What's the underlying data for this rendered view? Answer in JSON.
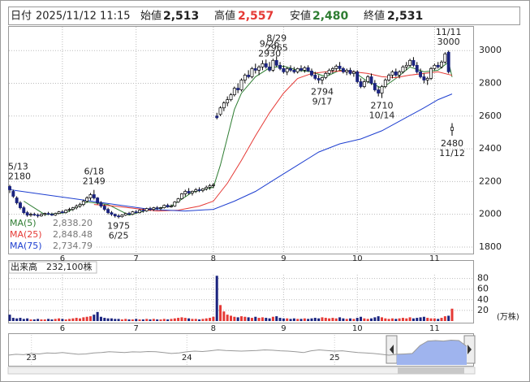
{
  "header": {
    "date_label": "日付",
    "date": "2025/11/12 11:15",
    "open_label": "始値",
    "open": "2,513",
    "high_label": "高値",
    "high": "2,557",
    "low_label": "安値",
    "low": "2,480",
    "close_label": "終値",
    "close": "2,531"
  },
  "chart_data": [
    {
      "type": "candlestick",
      "ylim": [
        1760,
        3150
      ],
      "yticks": [
        1800,
        2000,
        2200,
        2400,
        2600,
        2800,
        3000
      ],
      "xlim": [
        0,
        126
      ],
      "xticks": [
        {
          "value": 15,
          "label": "6"
        },
        {
          "value": 36,
          "label": "7"
        },
        {
          "value": 58,
          "label": "8"
        },
        {
          "value": 78,
          "label": "9"
        },
        {
          "value": 99,
          "label": "10"
        },
        {
          "value": 121,
          "label": "11"
        }
      ],
      "grid": true,
      "up_color": "#ffffff",
      "down_color": "#1a237e",
      "ohlc": [
        [
          2170,
          2180,
          2130,
          2150
        ],
        [
          2140,
          2150,
          2100,
          2110
        ],
        [
          2100,
          2110,
          2060,
          2070
        ],
        [
          2070,
          2080,
          2030,
          2040
        ],
        [
          2040,
          2050,
          2000,
          2010
        ],
        [
          2010,
          2020,
          1985,
          1995
        ],
        [
          1995,
          2010,
          1985,
          2000
        ],
        [
          2000,
          2010,
          1990,
          1995
        ],
        [
          1995,
          2005,
          1980,
          1990
        ],
        [
          1990,
          2005,
          1985,
          2000
        ],
        [
          2000,
          2010,
          1990,
          2005
        ],
        [
          2005,
          2015,
          1995,
          2000
        ],
        [
          2000,
          2010,
          1990,
          1995
        ],
        [
          1995,
          2010,
          1990,
          2005
        ],
        [
          2005,
          2020,
          2000,
          2015
        ],
        [
          2015,
          2025,
          2005,
          2010
        ],
        [
          2010,
          2030,
          2005,
          2025
        ],
        [
          2025,
          2040,
          2015,
          2030
        ],
        [
          2030,
          2045,
          2020,
          2040
        ],
        [
          2040,
          2060,
          2030,
          2050
        ],
        [
          2050,
          2070,
          2040,
          2060
        ],
        [
          2060,
          2090,
          2050,
          2080
        ],
        [
          2080,
          2110,
          2070,
          2100
        ],
        [
          2100,
          2130,
          2085,
          2120
        ],
        [
          2120,
          2149,
          2090,
          2100
        ],
        [
          2100,
          2105,
          2060,
          2070
        ],
        [
          2070,
          2080,
          2040,
          2050
        ],
        [
          2050,
          2060,
          2020,
          2030
        ],
        [
          2030,
          2040,
          2000,
          2010
        ],
        [
          2010,
          2020,
          1990,
          2000
        ],
        [
          2000,
          2005,
          1980,
          1990
        ],
        [
          1990,
          2000,
          1975,
          1985
        ],
        [
          1985,
          2000,
          1980,
          1995
        ],
        [
          1995,
          2010,
          1990,
          2005
        ],
        [
          2005,
          2015,
          1995,
          2000
        ],
        [
          2000,
          2020,
          1995,
          2015
        ],
        [
          2015,
          2025,
          2005,
          2010
        ],
        [
          2010,
          2030,
          2005,
          2025
        ],
        [
          2025,
          2035,
          2010,
          2020
        ],
        [
          2020,
          2040,
          2015,
          2035
        ],
        [
          2035,
          2045,
          2020,
          2030
        ],
        [
          2030,
          2045,
          2020,
          2040
        ],
        [
          2040,
          2050,
          2025,
          2035
        ],
        [
          2035,
          2045,
          2025,
          2040
        ],
        [
          2040,
          2060,
          2035,
          2055
        ],
        [
          2055,
          2065,
          2040,
          2045
        ],
        [
          2045,
          2060,
          2040,
          2050
        ],
        [
          2050,
          2080,
          2045,
          2075
        ],
        [
          2075,
          2100,
          2070,
          2095
        ],
        [
          2095,
          2130,
          2090,
          2125
        ],
        [
          2125,
          2150,
          2110,
          2140
        ],
        [
          2140,
          2160,
          2120,
          2130
        ],
        [
          2130,
          2145,
          2115,
          2140
        ],
        [
          2140,
          2160,
          2130,
          2150
        ],
        [
          2150,
          2165,
          2135,
          2145
        ],
        [
          2145,
          2160,
          2135,
          2155
        ],
        [
          2155,
          2175,
          2145,
          2165
        ],
        [
          2165,
          2185,
          2150,
          2175
        ],
        [
          2175,
          2190,
          2160,
          2180
        ],
        [
          2600,
          2620,
          2580,
          2590
        ],
        [
          2610,
          2660,
          2600,
          2650
        ],
        [
          2650,
          2690,
          2630,
          2680
        ],
        [
          2680,
          2720,
          2660,
          2700
        ],
        [
          2700,
          2740,
          2690,
          2730
        ],
        [
          2730,
          2780,
          2720,
          2770
        ],
        [
          2770,
          2800,
          2740,
          2760
        ],
        [
          2760,
          2830,
          2750,
          2820
        ],
        [
          2820,
          2860,
          2800,
          2850
        ],
        [
          2850,
          2880,
          2830,
          2840
        ],
        [
          2840,
          2900,
          2830,
          2890
        ],
        [
          2890,
          2920,
          2860,
          2880
        ],
        [
          2880,
          2910,
          2850,
          2900
        ],
        [
          2900,
          2940,
          2880,
          2920
        ],
        [
          2920,
          2945,
          2890,
          2900
        ],
        [
          2900,
          2930,
          2870,
          2880
        ],
        [
          2880,
          2950,
          2870,
          2940
        ],
        [
          2940,
          2965,
          2900,
          2910
        ],
        [
          2910,
          2930,
          2880,
          2890
        ],
        [
          2890,
          2910,
          2860,
          2870
        ],
        [
          2870,
          2900,
          2850,
          2890
        ],
        [
          2890,
          2910,
          2870,
          2880
        ],
        [
          2880,
          2900,
          2860,
          2870
        ],
        [
          2870,
          2895,
          2860,
          2890
        ],
        [
          2890,
          2910,
          2870,
          2880
        ],
        [
          2880,
          2905,
          2865,
          2895
        ],
        [
          2895,
          2910,
          2870,
          2875
        ],
        [
          2875,
          2890,
          2840,
          2850
        ],
        [
          2850,
          2870,
          2820,
          2830
        ],
        [
          2830,
          2850,
          2800,
          2820
        ],
        [
          2820,
          2840,
          2794,
          2835
        ],
        [
          2835,
          2870,
          2825,
          2860
        ],
        [
          2860,
          2890,
          2850,
          2880
        ],
        [
          2880,
          2900,
          2860,
          2890
        ],
        [
          2890,
          2915,
          2875,
          2905
        ],
        [
          2905,
          2930,
          2880,
          2890
        ],
        [
          2890,
          2900,
          2860,
          2870
        ],
        [
          2870,
          2890,
          2850,
          2880
        ],
        [
          2880,
          2895,
          2850,
          2860
        ],
        [
          2860,
          2880,
          2840,
          2870
        ],
        [
          2870,
          2880,
          2800,
          2810
        ],
        [
          2810,
          2830,
          2770,
          2780
        ],
        [
          2780,
          2820,
          2770,
          2810
        ],
        [
          2810,
          2850,
          2800,
          2840
        ],
        [
          2840,
          2860,
          2790,
          2800
        ],
        [
          2800,
          2820,
          2750,
          2760
        ],
        [
          2760,
          2780,
          2720,
          2740
        ],
        [
          2740,
          2790,
          2710,
          2780
        ],
        [
          2780,
          2830,
          2770,
          2820
        ],
        [
          2820,
          2860,
          2810,
          2850
        ],
        [
          2850,
          2880,
          2830,
          2870
        ],
        [
          2870,
          2890,
          2840,
          2850
        ],
        [
          2850,
          2880,
          2830,
          2870
        ],
        [
          2870,
          2910,
          2860,
          2900
        ],
        [
          2900,
          2930,
          2880,
          2910
        ],
        [
          2910,
          2950,
          2900,
          2940
        ],
        [
          2940,
          2960,
          2900,
          2910
        ],
        [
          2910,
          2930,
          2860,
          2870
        ],
        [
          2870,
          2890,
          2830,
          2840
        ],
        [
          2840,
          2860,
          2800,
          2820
        ],
        [
          2820,
          2840,
          2790,
          2830
        ],
        [
          2830,
          2900,
          2820,
          2890
        ],
        [
          2890,
          2920,
          2880,
          2910
        ],
        [
          2910,
          2930,
          2890,
          2900
        ],
        [
          2900,
          2940,
          2890,
          2930
        ],
        [
          2930,
          2990,
          2920,
          2980
        ],
        [
          2990,
          3000,
          2860,
          2870
        ],
        [
          2513,
          2557,
          2480,
          2531
        ]
      ],
      "series": [
        {
          "name": "MA(5)",
          "color": "#2e7d32",
          "legend_value": "2,838.20",
          "x": [
            4,
            10,
            16,
            22,
            28,
            34,
            40,
            46,
            52,
            58,
            60,
            62,
            64,
            66,
            70,
            74,
            78,
            82,
            86,
            90,
            94,
            98,
            102,
            106,
            110,
            114,
            118,
            122,
            125,
            126
          ],
          "values": [
            2080,
            1998,
            2010,
            2075,
            2060,
            1995,
            2030,
            2050,
            2135,
            2165,
            2300,
            2470,
            2640,
            2740,
            2840,
            2895,
            2905,
            2880,
            2870,
            2840,
            2880,
            2870,
            2810,
            2770,
            2830,
            2900,
            2870,
            2880,
            2930,
            2838.2
          ]
        },
        {
          "name": "MA(25)",
          "color": "#e53935",
          "legend_value": "2,848.48",
          "x": [
            24,
            30,
            36,
            42,
            48,
            54,
            58,
            62,
            66,
            70,
            74,
            78,
            82,
            86,
            90,
            94,
            98,
            102,
            106,
            110,
            114,
            118,
            122,
            126
          ],
          "values": [
            2060,
            2050,
            2035,
            2020,
            2025,
            2050,
            2080,
            2190,
            2330,
            2480,
            2620,
            2740,
            2830,
            2860,
            2870,
            2875,
            2870,
            2860,
            2840,
            2835,
            2850,
            2860,
            2870,
            2848.48
          ]
        },
        {
          "name": "MA(75)",
          "color": "#1e3fd0",
          "legend_value": "2,734.79",
          "x": [
            0,
            10,
            20,
            30,
            40,
            50,
            58,
            64,
            70,
            76,
            82,
            88,
            94,
            100,
            106,
            112,
            118,
            122,
            126
          ],
          "values": [
            2150,
            2120,
            2090,
            2060,
            2030,
            2020,
            2030,
            2080,
            2140,
            2220,
            2300,
            2380,
            2430,
            2460,
            2510,
            2580,
            2650,
            2700,
            2734.79
          ]
        }
      ],
      "annotations": [
        {
          "date": "5/13",
          "value": 2180
        },
        {
          "date": "6/18",
          "value": 2149
        },
        {
          "date": "6/25",
          "value": 1975
        },
        {
          "date": "8/29",
          "value": 2965
        },
        {
          "date": "9/17",
          "value": 2794
        },
        {
          "date": "9/26",
          "value": 2930
        },
        {
          "date": "10/14",
          "value": 2710
        },
        {
          "date": "11/11",
          "value": 3000
        },
        {
          "date": "11/12",
          "value": 2480
        }
      ]
    },
    {
      "type": "volume",
      "title": "出来高",
      "current": "232,100株",
      "unit": "(万株)",
      "ylim": [
        0,
        87
      ],
      "yticks": [
        20,
        40,
        60,
        80
      ],
      "up_color": "#e53935",
      "down_color": "#1a237e",
      "values": [
        12,
        6,
        5,
        6,
        4,
        5,
        3,
        3,
        4,
        3,
        3,
        4,
        3,
        4,
        5,
        4,
        3,
        4,
        5,
        6,
        5,
        7,
        8,
        9,
        12,
        17,
        8,
        6,
        5,
        5,
        4,
        4,
        3,
        4,
        3,
        3,
        4,
        3,
        3,
        4,
        3,
        4,
        3,
        3,
        4,
        3,
        4,
        5,
        6,
        7,
        6,
        5,
        4,
        4,
        3,
        4,
        5,
        6,
        8,
        85,
        30,
        18,
        12,
        10,
        8,
        7,
        9,
        8,
        7,
        6,
        8,
        6,
        7,
        6,
        5,
        8,
        9,
        6,
        5,
        5,
        4,
        5,
        4,
        4,
        5,
        4,
        5,
        6,
        5,
        7,
        6,
        5,
        6,
        5,
        7,
        5,
        4,
        5,
        4,
        6,
        8,
        5,
        4,
        5,
        7,
        9,
        7,
        5,
        4,
        5,
        4,
        5,
        6,
        5,
        7,
        5,
        6,
        7,
        8,
        6,
        5,
        5,
        4,
        6,
        9,
        10,
        23.21
      ]
    },
    {
      "type": "area",
      "ylim": [
        1500,
        3200
      ],
      "xticks": [
        {
          "value": 3,
          "label": "23"
        },
        {
          "value": 23,
          "label": "24"
        },
        {
          "value": 42,
          "label": "25"
        }
      ],
      "values": [
        2050,
        2100,
        2080,
        2150,
        2120,
        2180,
        2160,
        2200,
        2150,
        2100,
        2120,
        2180,
        2200,
        2250,
        2220,
        2200,
        2240,
        2230,
        2260,
        2250,
        2200,
        2150,
        2180,
        2250,
        2280,
        2260,
        2300,
        2350,
        2320,
        2300,
        2280,
        2300,
        2320,
        2350,
        2330,
        2300,
        2280,
        2250,
        2200,
        2300,
        2350,
        2320,
        2280,
        2300,
        2250,
        2200,
        2180,
        2150,
        2100,
        2050,
        2100,
        2120,
        2150,
        2600,
        2850,
        2880,
        2850,
        2900,
        2880,
        2550
      ]
    }
  ]
}
